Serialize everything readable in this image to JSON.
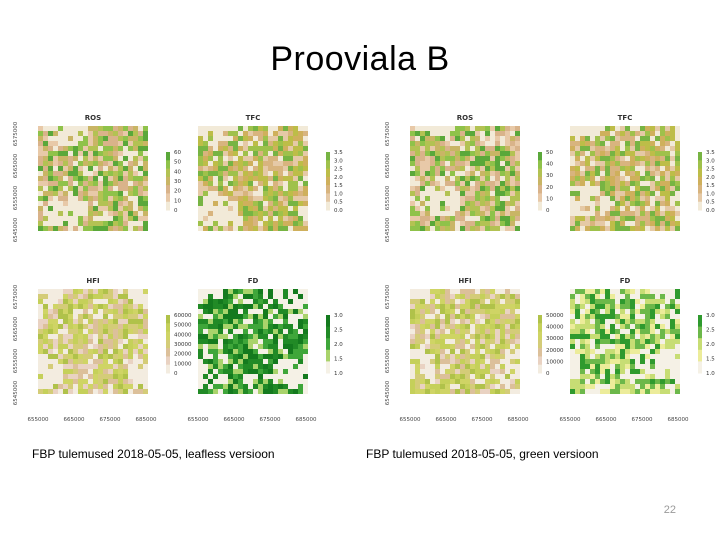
{
  "slide": {
    "title": "Prooviala B",
    "page_number": "22"
  },
  "figures": [
    {
      "id": "leafless",
      "caption": "FBP tulemused 2018-05-05, leafless versioon",
      "panels": [
        {
          "title": "ROS",
          "palette": "ros",
          "legend": [
            "60",
            "50",
            "40",
            "30",
            "20",
            "10",
            "0"
          ]
        },
        {
          "title": "TFC",
          "palette": "tfc",
          "legend": [
            "3.5",
            "3.0",
            "2.5",
            "2.0",
            "1.5",
            "1.0",
            "0.5",
            "0.0"
          ]
        },
        {
          "title": "HFI",
          "palette": "hfi",
          "legend": [
            "60000",
            "50000",
            "40000",
            "30000",
            "20000",
            "10000",
            "0"
          ]
        },
        {
          "title": "FD",
          "palette": "fd_dark",
          "legend": [
            "3.0",
            "2.5",
            "2.0",
            "1.5",
            "1.0"
          ]
        }
      ],
      "y_ticks_top": [
        "6575000",
        "6565000",
        "6555000",
        "6545000"
      ],
      "y_ticks_bottom": [
        "6575000",
        "6565000",
        "6555000",
        "6545000"
      ],
      "x_ticks": [
        "655000",
        "665000",
        "675000",
        "685000"
      ]
    },
    {
      "id": "green",
      "caption": "FBP tulemused 2018-05-05, green versioon",
      "panels": [
        {
          "title": "ROS",
          "palette": "ros",
          "legend": [
            "50",
            "40",
            "30",
            "20",
            "10",
            "0"
          ]
        },
        {
          "title": "TFC",
          "palette": "tfc",
          "legend": [
            "3.5",
            "3.0",
            "2.5",
            "2.0",
            "1.5",
            "1.0",
            "0.5",
            "0.0"
          ]
        },
        {
          "title": "HFI",
          "palette": "hfi",
          "legend": [
            "50000",
            "40000",
            "30000",
            "20000",
            "10000",
            "0"
          ]
        },
        {
          "title": "FD",
          "palette": "fd_light",
          "legend": [
            "3.0",
            "2.5",
            "2.0",
            "1.5",
            "1.0"
          ]
        }
      ],
      "y_ticks_top": [
        "6575000",
        "6565000",
        "6555000",
        "6545000"
      ],
      "y_ticks_bottom": [
        "6575000",
        "6565000",
        "6555000",
        "6545000"
      ],
      "x_ticks": [
        "655000",
        "665000",
        "675000",
        "685000"
      ]
    }
  ],
  "palettes": {
    "ros": [
      "#f2ead8",
      "#e8c9a8",
      "#d9b38a",
      "#c9b565",
      "#b3c253",
      "#8fc24a",
      "#5aa83a"
    ],
    "tfc": [
      "#f2ead8",
      "#e5c9a6",
      "#d8b47e",
      "#cfb05c",
      "#bdbd48",
      "#9fc14b",
      "#77b443"
    ],
    "hfi": [
      "#f3ece0",
      "#e9d2c2",
      "#dcc09a",
      "#d4cc78",
      "#cfd465",
      "#c5d05a",
      "#b0c24a"
    ],
    "fd_dark": [
      "#f5f1e6",
      "#a9d36b",
      "#3fa63a",
      "#218a26",
      "#147a1e"
    ],
    "fd_light": [
      "#f5f1e6",
      "#ecec9a",
      "#c7dd74",
      "#6cb84a",
      "#2f9a2e"
    ]
  }
}
